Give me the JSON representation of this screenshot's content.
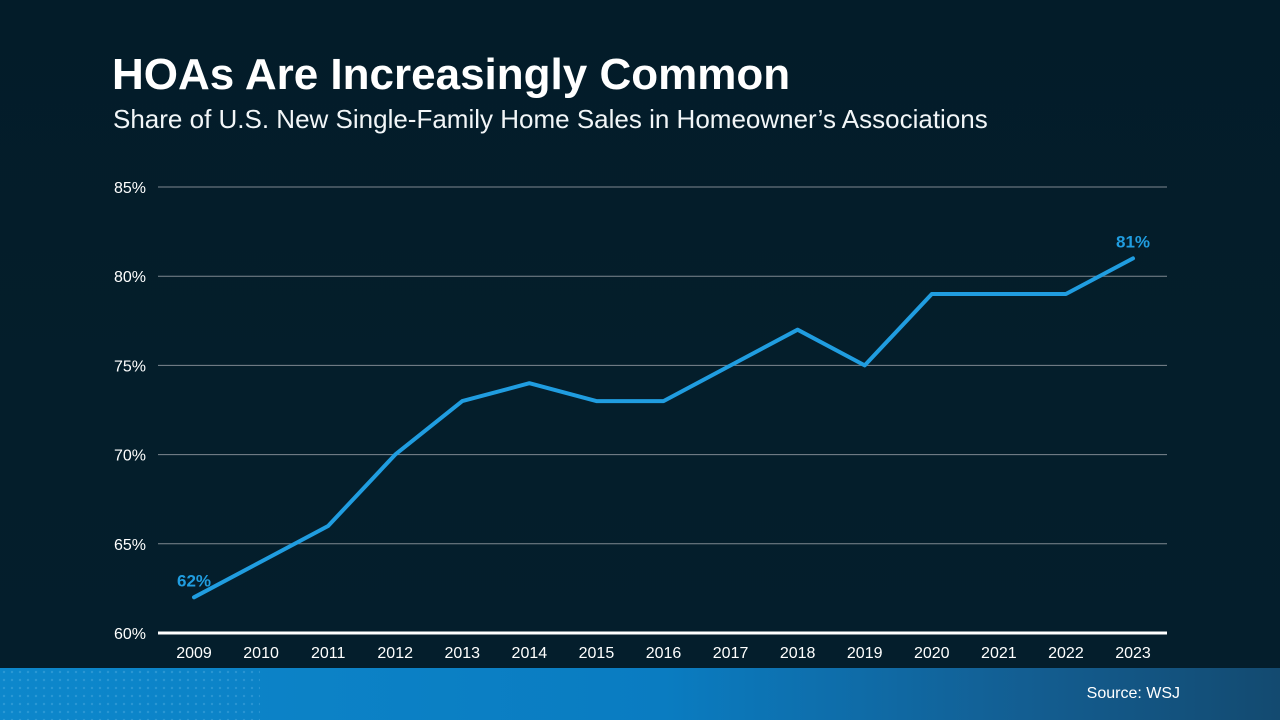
{
  "header": {
    "title": "HOAs Are Increasingly Common",
    "subtitle": "Share of U.S. New Single-Family Home Sales in Homeowner’s Associations"
  },
  "footer": {
    "source": "Source: WSJ"
  },
  "colors": {
    "background": "#041e2b",
    "line": "#209de0",
    "gridline": "#7e8890",
    "axis_line": "#ffffff",
    "tick_text": "#ffffff",
    "footer_gradient_left": "#0d87cb",
    "footer_gradient_mid": "#0a7cc1",
    "footer_gradient_right": "#134a70"
  },
  "chart_data": {
    "type": "line",
    "title": "HOAs Are Increasingly Common",
    "subtitle": "Share of U.S. New Single-Family Home Sales in Homeowner’s Associations",
    "x": [
      2009,
      2010,
      2011,
      2012,
      2013,
      2014,
      2015,
      2016,
      2017,
      2018,
      2019,
      2020,
      2021,
      2022,
      2023
    ],
    "values": [
      62,
      64,
      66,
      70,
      73,
      74,
      73,
      73,
      75,
      77,
      75,
      79,
      79,
      79,
      81
    ],
    "ylim": [
      60,
      85
    ],
    "yticks": [
      60,
      65,
      70,
      75,
      80,
      85
    ],
    "ytick_suffix": "%",
    "xlabel": "",
    "ylabel": "",
    "grid": true,
    "legend": "none",
    "data_labels": [
      {
        "index": 0,
        "label": "62%"
      },
      {
        "index": 14,
        "label": "81%"
      }
    ],
    "source": "Source: WSJ"
  }
}
